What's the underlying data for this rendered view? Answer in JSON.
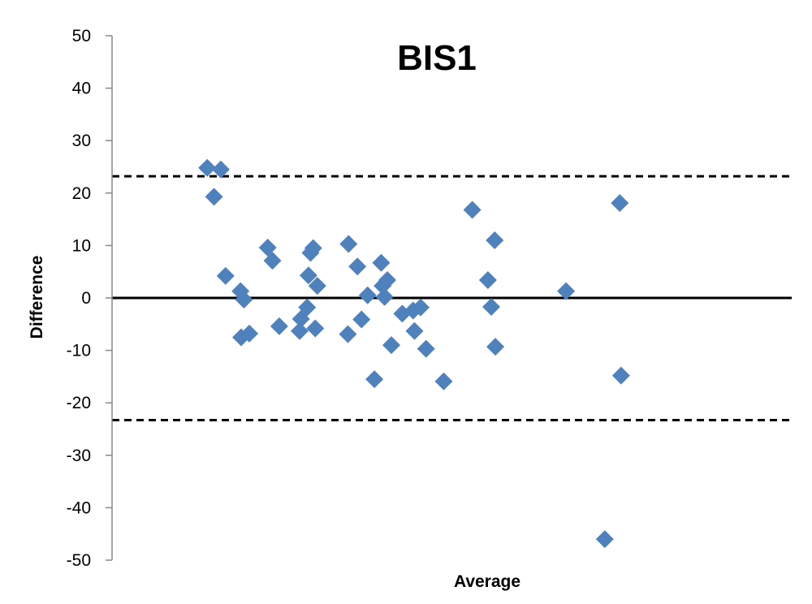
{
  "chart_data": {
    "type": "scatter",
    "title": "BIS1",
    "xlabel": "Average",
    "ylabel": "Difference",
    "ylim": [
      -50,
      50
    ],
    "yticks": [
      50,
      40,
      30,
      20,
      10,
      0,
      -10,
      -20,
      -30,
      -40,
      -50
    ],
    "x_tick_labels_shown": false,
    "grid": false,
    "legend": "none",
    "colors": {
      "points": "#4f81bd",
      "lines": "#000000"
    },
    "reference_lines": [
      {
        "y": 23.2,
        "style": "dashed"
      },
      {
        "y": 0,
        "style": "solid"
      },
      {
        "y": -23.3,
        "style": "dashed"
      }
    ],
    "series": [
      {
        "points": [
          {
            "x": 0.14,
            "y": 24.8
          },
          {
            "x": 0.16,
            "y": 24.5
          },
          {
            "x": 0.15,
            "y": 19.3
          },
          {
            "x": 0.167,
            "y": 4.2
          },
          {
            "x": 0.189,
            "y": 1.3
          },
          {
            "x": 0.194,
            "y": -0.3
          },
          {
            "x": 0.19,
            "y": -7.5
          },
          {
            "x": 0.202,
            "y": -6.8
          },
          {
            "x": 0.229,
            "y": 9.6
          },
          {
            "x": 0.236,
            "y": 7.1
          },
          {
            "x": 0.246,
            "y": -5.4
          },
          {
            "x": 0.276,
            "y": -6.3
          },
          {
            "x": 0.278,
            "y": -4.0
          },
          {
            "x": 0.287,
            "y": -1.8
          },
          {
            "x": 0.289,
            "y": 4.3
          },
          {
            "x": 0.292,
            "y": 8.6
          },
          {
            "x": 0.296,
            "y": 9.5
          },
          {
            "x": 0.299,
            "y": -5.8
          },
          {
            "x": 0.302,
            "y": 2.3
          },
          {
            "x": 0.348,
            "y": 10.3
          },
          {
            "x": 0.347,
            "y": -6.9
          },
          {
            "x": 0.361,
            "y": 6.0
          },
          {
            "x": 0.367,
            "y": -4.1
          },
          {
            "x": 0.376,
            "y": 0.5
          },
          {
            "x": 0.386,
            "y": -15.5
          },
          {
            "x": 0.396,
            "y": 6.7
          },
          {
            "x": 0.398,
            "y": 2.3
          },
          {
            "x": 0.401,
            "y": 0.2
          },
          {
            "x": 0.405,
            "y": 3.4
          },
          {
            "x": 0.411,
            "y": -9.0
          },
          {
            "x": 0.427,
            "y": -3.0
          },
          {
            "x": 0.443,
            "y": -2.4
          },
          {
            "x": 0.445,
            "y": -6.3
          },
          {
            "x": 0.454,
            "y": -1.8
          },
          {
            "x": 0.462,
            "y": -9.7
          },
          {
            "x": 0.488,
            "y": -15.9
          },
          {
            "x": 0.53,
            "y": 16.8
          },
          {
            "x": 0.553,
            "y": 3.4
          },
          {
            "x": 0.558,
            "y": -1.7
          },
          {
            "x": 0.563,
            "y": 11.0
          },
          {
            "x": 0.564,
            "y": -9.3
          },
          {
            "x": 0.668,
            "y": 1.3
          },
          {
            "x": 0.725,
            "y": -46.0
          },
          {
            "x": 0.747,
            "y": 18.1
          },
          {
            "x": 0.749,
            "y": -14.8
          }
        ]
      }
    ]
  }
}
